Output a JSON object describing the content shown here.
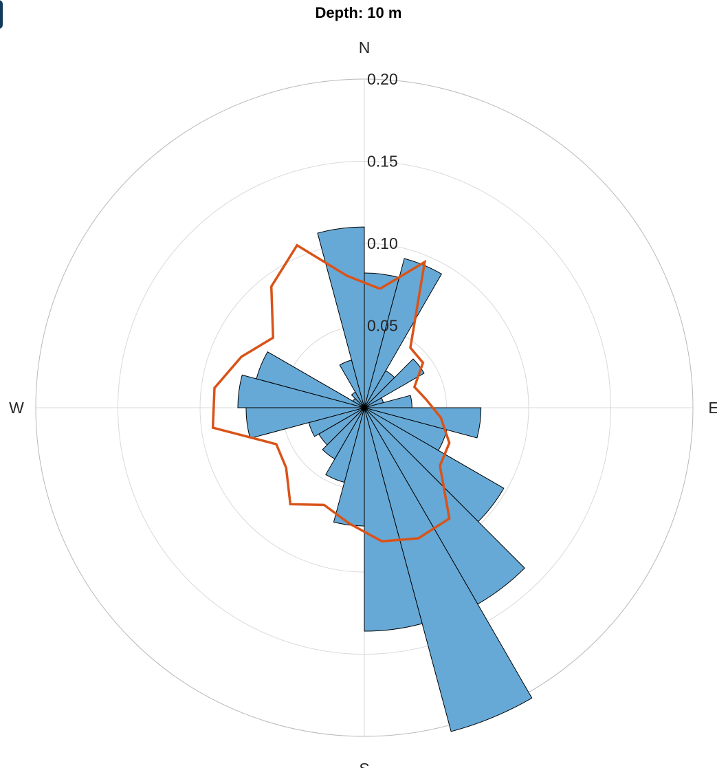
{
  "chart_data": {
    "type": "polar-histogram",
    "title": "Depth: 10 m",
    "rlim": [
      0,
      0.2
    ],
    "r_ticks": [
      0.05,
      0.1,
      0.15,
      0.2
    ],
    "r_tick_labels": [
      "0.05",
      "0.10",
      "0.15",
      "0.20"
    ],
    "theta_labels": [
      {
        "label": "N",
        "angle": 0
      },
      {
        "label": "E",
        "angle": 90
      },
      {
        "label": "S",
        "angle": 180
      },
      {
        "label": "W",
        "angle": 270
      }
    ],
    "bin_width_deg": 15,
    "bar_color": "#66a9d6",
    "line_color": "#d95319",
    "grid": true,
    "histogram": {
      "bin_centers_deg": [
        7.5,
        22.5,
        37.5,
        52.5,
        67.5,
        82.5,
        97.5,
        112.5,
        127.5,
        142.5,
        157.5,
        172.5,
        187.5,
        202.5,
        217.5,
        232.5,
        247.5,
        262.5,
        277.5,
        292.5,
        307.5,
        322.5,
        337.5,
        352.5
      ],
      "values": [
        0.082,
        0.094,
        0.026,
        0.042,
        0.012,
        0.029,
        0.071,
        0.052,
        0.098,
        0.138,
        0.204,
        0.136,
        0.072,
        0.047,
        0.036,
        0.032,
        0.035,
        0.072,
        0.077,
        0.068,
        0.008,
        0.011,
        0.03,
        0.11
      ]
    },
    "line": {
      "theta_deg": [
        7.5,
        22.5,
        37.5,
        52.5,
        67.5,
        82.5,
        97.5,
        112.5,
        127.5,
        142.5,
        157.5,
        172.5,
        187.5,
        202.5,
        217.5,
        232.5,
        247.5,
        262.5,
        277.5,
        292.5,
        307.5,
        322.5,
        337.5,
        352.5,
        7.5
      ],
      "r": [
        0.073,
        0.096,
        0.046,
        0.045,
        0.033,
        0.038,
        0.047,
        0.056,
        0.058,
        0.085,
        0.086,
        0.082,
        0.071,
        0.064,
        0.074,
        0.06,
        0.058,
        0.093,
        0.092,
        0.081,
        0.07,
        0.093,
        0.107,
        0.081,
        0.073
      ]
    }
  }
}
